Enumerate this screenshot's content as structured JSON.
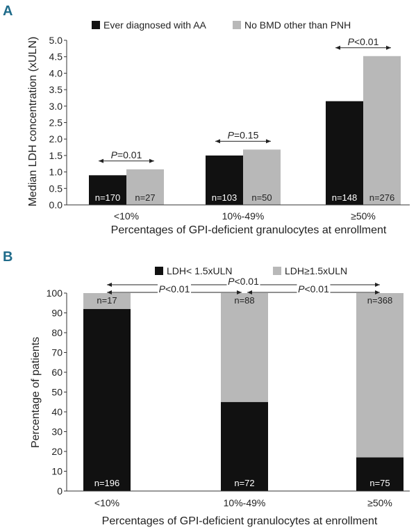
{
  "chart_data": [
    {
      "panel": "A",
      "type": "bar",
      "ylabel": "Median LDH concentration (xULN)",
      "xlabel": "Percentages of GPI-deficient granulocytes at enrollment",
      "ylim": [
        0,
        5.0
      ],
      "yticks": [
        "0.0",
        "0.5",
        "1.0",
        "1.5",
        "2.0",
        "2.5",
        "3.0",
        "3.5",
        "4.0",
        "4.5",
        "5.0"
      ],
      "categories": [
        "<10%",
        "10%-49%",
        "≥50%"
      ],
      "legend_position": "top",
      "series": [
        {
          "name": "Ever diagnosed with AA",
          "color": "#111111",
          "values": [
            0.9,
            1.5,
            3.15
          ],
          "n_labels": [
            "n=170",
            "n=103",
            "n=148"
          ]
        },
        {
          "name": "No BMD other than PNH",
          "color": "#b8b8b8",
          "values": [
            1.08,
            1.68,
            4.52
          ],
          "n_labels": [
            "n=27",
            "n=50",
            "n=276"
          ]
        }
      ],
      "p_values": [
        {
          "category": 0,
          "italic": "P",
          "rest": "=0.01"
        },
        {
          "category": 1,
          "italic": "P",
          "rest": "=0.15"
        },
        {
          "category": 2,
          "italic": "P",
          "rest": "<0.01"
        }
      ]
    },
    {
      "panel": "B",
      "type": "bar",
      "stacked": true,
      "ylabel": "Percentage of patients",
      "xlabel": "Percentages of GPI-deficient granulocytes at enrollment",
      "ylim": [
        0,
        100
      ],
      "yticks": [
        "0",
        "10",
        "20",
        "30",
        "40",
        "50",
        "60",
        "70",
        "80",
        "90",
        "100"
      ],
      "categories": [
        "<10%",
        "10%-49%",
        "≥50%"
      ],
      "legend_position": "top",
      "series": [
        {
          "name": "LDH< 1.5xULN",
          "color": "#111111",
          "values": [
            92,
            45,
            17
          ],
          "n_labels": [
            "n=196",
            "n=72",
            "n=75"
          ]
        },
        {
          "name": "LDH≥1.5xULN",
          "color": "#b8b8b8",
          "values": [
            8,
            55,
            83
          ],
          "n_labels": [
            "n=17",
            "n=88",
            "n=368"
          ]
        }
      ],
      "p_values": [
        {
          "from": 0,
          "to": 2,
          "italic": "P",
          "rest": "<0.01"
        },
        {
          "from": 0,
          "to": 1,
          "italic": "P",
          "rest": "<0.01"
        },
        {
          "from": 1,
          "to": 2,
          "italic": "P",
          "rest": "<0.01"
        }
      ]
    }
  ]
}
